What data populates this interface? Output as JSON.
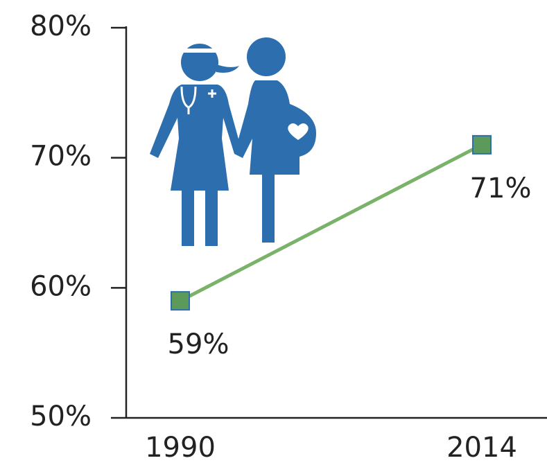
{
  "chart_data": {
    "type": "line",
    "categories": [
      "1990",
      "2014"
    ],
    "values": [
      59,
      71
    ],
    "value_labels": [
      "59%",
      "71%"
    ],
    "color": "#7ab26a",
    "marker_color": "#5c9a5b",
    "ylim": [
      50,
      80
    ],
    "yticks": [
      {
        "value": 50,
        "label": "50%"
      },
      {
        "value": 60,
        "label": "60%"
      },
      {
        "value": 70,
        "label": "70%"
      },
      {
        "value": 80,
        "label": "80%"
      }
    ]
  }
}
